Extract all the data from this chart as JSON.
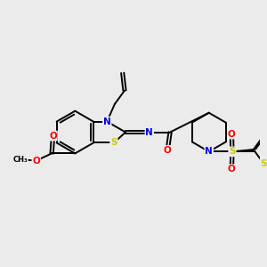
{
  "background_color": "#ebebeb",
  "bond_color": "#000000",
  "bond_width": 1.4,
  "atom_colors": {
    "N": "#0000ee",
    "S": "#cccc00",
    "O": "#ff0000",
    "C": "#000000"
  },
  "font_size": 7.5
}
